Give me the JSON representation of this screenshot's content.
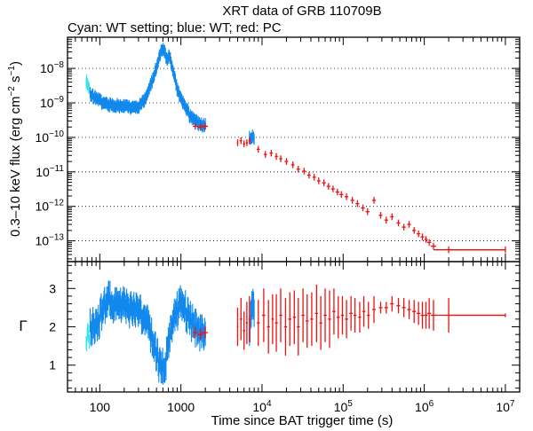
{
  "chart_data": [
    {
      "type": "scatter",
      "panel": "flux",
      "title": "XRT data of GRB 110709B",
      "subtitle": "Cyan: WT setting; blue: WT; red: PC",
      "ylabel_main": "0.3–10 keV flux (erg cm",
      "ylabel_sup1": "−2",
      "ylabel_mid": " s",
      "ylabel_sup2": "−1",
      "ylabel_end": ")",
      "xscale": "log",
      "yscale": "log",
      "xlim": [
        40,
        15000000
      ],
      "ylim": [
        2.5e-14,
        8e-08
      ],
      "yticks": [
        {
          "exp": -8,
          "base": "10",
          "sup": "−8"
        },
        {
          "exp": -9,
          "base": "10",
          "sup": "−9"
        },
        {
          "exp": -10,
          "base": "10",
          "sup": "−10"
        },
        {
          "exp": -11,
          "base": "10",
          "sup": "−11"
        },
        {
          "exp": -12,
          "base": "10",
          "sup": "−12"
        },
        {
          "exp": -13,
          "base": "10",
          "sup": "−13"
        }
      ],
      "series": [
        {
          "name": "WT setting",
          "color": "#33e6e6",
          "mode": "band",
          "x": [
            68,
            71,
            74
          ],
          "y": [
            4.5e-09,
            3.5e-09,
            2.5e-09
          ]
        },
        {
          "name": "WT",
          "color": "#1188ee",
          "mode": "band",
          "x": [
            76,
            90,
            110,
            130,
            160,
            200,
            250,
            300,
            350,
            400,
            450,
            500,
            550,
            600,
            640,
            680,
            720,
            760,
            800,
            850,
            900,
            1000,
            1100,
            1200,
            1300,
            1500,
            1700,
            2000
          ],
          "y": [
            1.8e-09,
            1.4e-09,
            1e-09,
            9e-10,
            8.5e-10,
            8e-10,
            7.5e-10,
            8e-10,
            1.1e-09,
            2.2e-09,
            5e-09,
            1.1e-08,
            2.5e-08,
            3.6e-08,
            2.8e-08,
            1.6e-08,
            2.4e-08,
            1.5e-08,
            9e-09,
            5e-09,
            2.5e-09,
            1.3e-09,
            9e-10,
            6e-10,
            4e-10,
            3e-10,
            2.5e-10,
            2.2e-10
          ]
        },
        {
          "name": "WT (late)",
          "color": "#1188ee",
          "mode": "band",
          "x": [
            7000,
            7500,
            8000
          ],
          "y": [
            1e-10,
            1.1e-10,
            9e-11
          ]
        },
        {
          "name": "PC",
          "color": "#ee1111",
          "mode": "points",
          "x": [
            1500,
            1750,
            2000,
            5000,
            5500,
            6000,
            6500,
            7000,
            9000,
            11000,
            13000,
            15000,
            17000,
            20000,
            24000,
            28000,
            33000,
            38000,
            44000,
            50000,
            58000,
            66000,
            75000,
            85000,
            95000,
            110000,
            130000,
            150000,
            175000,
            200000,
            240000,
            290000,
            340000,
            400000,
            480000,
            560000,
            650000,
            750000,
            850000,
            950000,
            1050000,
            1150000,
            1300000,
            2000000,
            10000000
          ],
          "y": [
            2.1e-10,
            2e-10,
            2.1e-10,
            7e-11,
            8e-11,
            6.5e-11,
            7e-11,
            8e-11,
            4.5e-11,
            3.2e-11,
            3.5e-11,
            2.8e-11,
            2.4e-11,
            2e-11,
            1.6e-11,
            1.2e-11,
            1.05e-11,
            8e-12,
            7e-12,
            5.5e-12,
            4.8e-12,
            3.8e-12,
            3.2e-12,
            2.6e-12,
            2.2e-12,
            1.9e-12,
            1.5e-12,
            1.2e-12,
            9e-13,
            7e-13,
            1.5e-12,
            5.5e-13,
            4e-13,
            5e-13,
            3.3e-13,
            2.5e-13,
            3e-13,
            2e-13,
            1.6e-13,
            1.3e-13,
            1.1e-13,
            9e-14,
            7e-14,
            5.5e-14,
            5.5e-14
          ],
          "xerr_lo": [
            1400,
            1600,
            1800,
            4900,
            5300,
            5800,
            6300,
            6800,
            8600,
            10500,
            12400,
            14400,
            16300,
            19000,
            22800,
            26600,
            31400,
            36100,
            41800,
            47500,
            55000,
            62500,
            71000,
            80500,
            90000,
            104000,
            123000,
            142000,
            165000,
            189000,
            228000,
            275000,
            322000,
            379000,
            455000,
            530000,
            615000,
            710000,
            805000,
            900000,
            1000000,
            1090000,
            1200000,
            1300000,
            2000000
          ],
          "xerr_hi": [
            1600,
            1900,
            2150,
            5100,
            5700,
            6200,
            6700,
            7200,
            9400,
            11500,
            13600,
            15700,
            17800,
            21000,
            25200,
            29400,
            34600,
            39900,
            46200,
            52500,
            61000,
            69500,
            79000,
            89500,
            100000,
            116000,
            137000,
            158000,
            185000,
            211000,
            252000,
            305000,
            358000,
            421000,
            505000,
            590000,
            685000,
            790000,
            895000,
            1000000,
            1100000,
            1210000,
            1400000,
            10000000,
            10000000
          ],
          "yerr_frac": 0.25
        }
      ]
    },
    {
      "type": "scatter",
      "panel": "photon-index",
      "xlabel": "Time since BAT trigger time (s)",
      "ylabel": "Γ",
      "xscale": "log",
      "yscale": "linear",
      "xlim": [
        40,
        15000000
      ],
      "ylim": [
        0.3,
        3.7
      ],
      "yticks": [
        1,
        2,
        3
      ],
      "xticks": [
        {
          "value": 100,
          "base": "100",
          "sup": ""
        },
        {
          "value": 1000,
          "base": "1000",
          "sup": ""
        },
        {
          "value": 10000,
          "base": "10",
          "sup": "4"
        },
        {
          "value": 100000,
          "base": "10",
          "sup": "5"
        },
        {
          "value": 1000000,
          "base": "10",
          "sup": "6"
        },
        {
          "value": 10000000,
          "base": "10",
          "sup": "7"
        }
      ],
      "series": [
        {
          "name": "WT setting",
          "color": "#33e6e6",
          "mode": "band",
          "x": [
            68,
            71,
            74
          ],
          "y": [
            1.6,
            1.8,
            1.75
          ],
          "halfwidth": 0.2
        },
        {
          "name": "WT",
          "color": "#1188ee",
          "mode": "band",
          "x": [
            76,
            85,
            95,
            110,
            130,
            150,
            180,
            220,
            260,
            300,
            350,
            400,
            450,
            500,
            550,
            600,
            650,
            700,
            750,
            800,
            850,
            900,
            1000,
            1100,
            1200,
            1300,
            1450,
            1600,
            1800,
            2000
          ],
          "y": [
            2.0,
            2.05,
            2.1,
            2.5,
            2.7,
            2.6,
            2.55,
            2.5,
            2.45,
            2.4,
            2.2,
            2.0,
            1.7,
            1.3,
            1.0,
            0.95,
            1.1,
            1.5,
            1.8,
            2.2,
            2.3,
            2.4,
            2.6,
            2.5,
            2.3,
            2.2,
            2.0,
            1.9,
            1.85,
            1.85
          ],
          "halfwidth": 0.35
        },
        {
          "name": "WT (late)",
          "color": "#1188ee",
          "mode": "band",
          "x": [
            7000,
            7500,
            8000
          ],
          "y": [
            2.1,
            2.4,
            2.5
          ],
          "halfwidth": 0.4
        },
        {
          "name": "PC",
          "color": "#ee1111",
          "mode": "points",
          "x": [
            1500,
            1750,
            2000,
            5000,
            5500,
            6000,
            6500,
            7000,
            9000,
            10500,
            12000,
            13500,
            15000,
            17000,
            19500,
            22000,
            25000,
            28000,
            32000,
            36000,
            41000,
            47000,
            53000,
            60000,
            68000,
            77000,
            87000,
            98000,
            110000,
            125000,
            140000,
            160000,
            180000,
            205000,
            240000,
            290000,
            340000,
            400000,
            480000,
            560000,
            650000,
            750000,
            850000,
            950000,
            1050000,
            1150000,
            1300000,
            2000000,
            10000000
          ],
          "y": [
            1.85,
            1.8,
            1.85,
            2.0,
            2.2,
            1.9,
            2.1,
            2.2,
            2.1,
            2.3,
            2.0,
            2.2,
            2.1,
            2.3,
            2.0,
            2.2,
            2.25,
            2.0,
            2.3,
            2.15,
            2.2,
            2.35,
            2.1,
            2.3,
            2.2,
            2.4,
            2.25,
            2.3,
            2.2,
            2.35,
            2.3,
            2.25,
            2.4,
            2.3,
            2.45,
            2.5,
            2.5,
            2.6,
            2.55,
            2.5,
            2.45,
            2.4,
            2.35,
            2.3,
            2.3,
            2.35,
            2.3,
            2.3,
            2.3
          ],
          "xerr_lo": [
            1400,
            1600,
            1800,
            4900,
            5300,
            5800,
            6300,
            6800,
            8600,
            10000,
            11500,
            13000,
            14400,
            16300,
            18700,
            21000,
            24000,
            26800,
            30600,
            34400,
            39200,
            45000,
            50700,
            57400,
            65000,
            73600,
            83200,
            93700,
            105000,
            119000,
            134000,
            153000,
            172000,
            196000,
            228000,
            275000,
            322000,
            379000,
            455000,
            530000,
            615000,
            710000,
            805000,
            900000,
            1000000,
            1090000,
            1200000,
            1300000,
            2000000
          ],
          "xerr_hi": [
            1600,
            1900,
            2150,
            5100,
            5700,
            6200,
            6700,
            7200,
            9400,
            11000,
            12500,
            14000,
            15700,
            17800,
            20400,
            23000,
            26100,
            29300,
            33500,
            37600,
            42900,
            49100,
            55400,
            62700,
            71000,
            80500,
            91000,
            102000,
            115000,
            131000,
            146000,
            167000,
            188000,
            214000,
            252000,
            305000,
            358000,
            421000,
            505000,
            590000,
            685000,
            790000,
            895000,
            1000000,
            1100000,
            1210000,
            1400000,
            10000000,
            10000000
          ],
          "yerr": [
            0.15,
            0.15,
            0.15,
            0.5,
            0.55,
            0.5,
            0.55,
            0.6,
            0.6,
            0.7,
            0.7,
            0.65,
            0.75,
            0.7,
            0.75,
            0.7,
            0.7,
            0.75,
            0.7,
            0.7,
            0.7,
            0.75,
            0.7,
            0.7,
            0.75,
            0.6,
            0.55,
            0.5,
            0.5,
            0.45,
            0.45,
            0.4,
            0.4,
            0.35,
            0.35,
            0.15,
            0.15,
            0.2,
            0.2,
            0.25,
            0.25,
            0.3,
            0.3,
            0.35,
            0.35,
            0.4,
            0.4,
            0.45,
            0.05
          ]
        }
      ]
    }
  ]
}
